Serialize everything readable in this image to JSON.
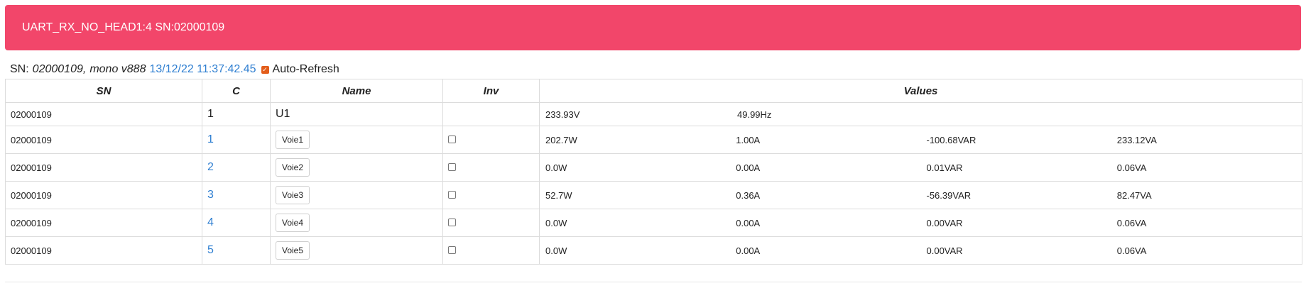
{
  "banner": {
    "title": "UART_RX_NO_HEAD1:4 SN:02000109"
  },
  "info": {
    "sn_label": "SN:",
    "sn_value": "02000109,",
    "fw": "mono v888",
    "timestamp": "13/12/22 11:37:42.45",
    "auto_refresh_label": "Auto-Refresh",
    "auto_refresh_checked": true
  },
  "table": {
    "headers": [
      "SN",
      "C",
      "Name",
      "Inv",
      "Values"
    ],
    "voltage_row": {
      "sn": "02000109",
      "c": "1",
      "name": "U1",
      "values": [
        "233.93V",
        "49.99Hz"
      ]
    },
    "rows": [
      {
        "sn": "02000109",
        "c": "1",
        "name": "Voie1",
        "values": [
          "202.7W",
          "1.00A",
          "-100.68VAR",
          "233.12VA"
        ]
      },
      {
        "sn": "02000109",
        "c": "2",
        "name": "Voie2",
        "values": [
          "0.0W",
          "0.00A",
          "0.01VAR",
          "0.06VA"
        ]
      },
      {
        "sn": "02000109",
        "c": "3",
        "name": "Voie3",
        "values": [
          "52.7W",
          "0.36A",
          "-56.39VAR",
          "82.47VA"
        ]
      },
      {
        "sn": "02000109",
        "c": "4",
        "name": "Voie4",
        "values": [
          "0.0W",
          "0.00A",
          "0.00VAR",
          "0.06VA"
        ]
      },
      {
        "sn": "02000109",
        "c": "5",
        "name": "Voie5",
        "values": [
          "0.0W",
          "0.00A",
          "0.00VAR",
          "0.06VA"
        ]
      }
    ]
  },
  "colors": {
    "banner": "#f2466a",
    "link": "#2f7fd1",
    "checkbox": "#e35d1a"
  }
}
